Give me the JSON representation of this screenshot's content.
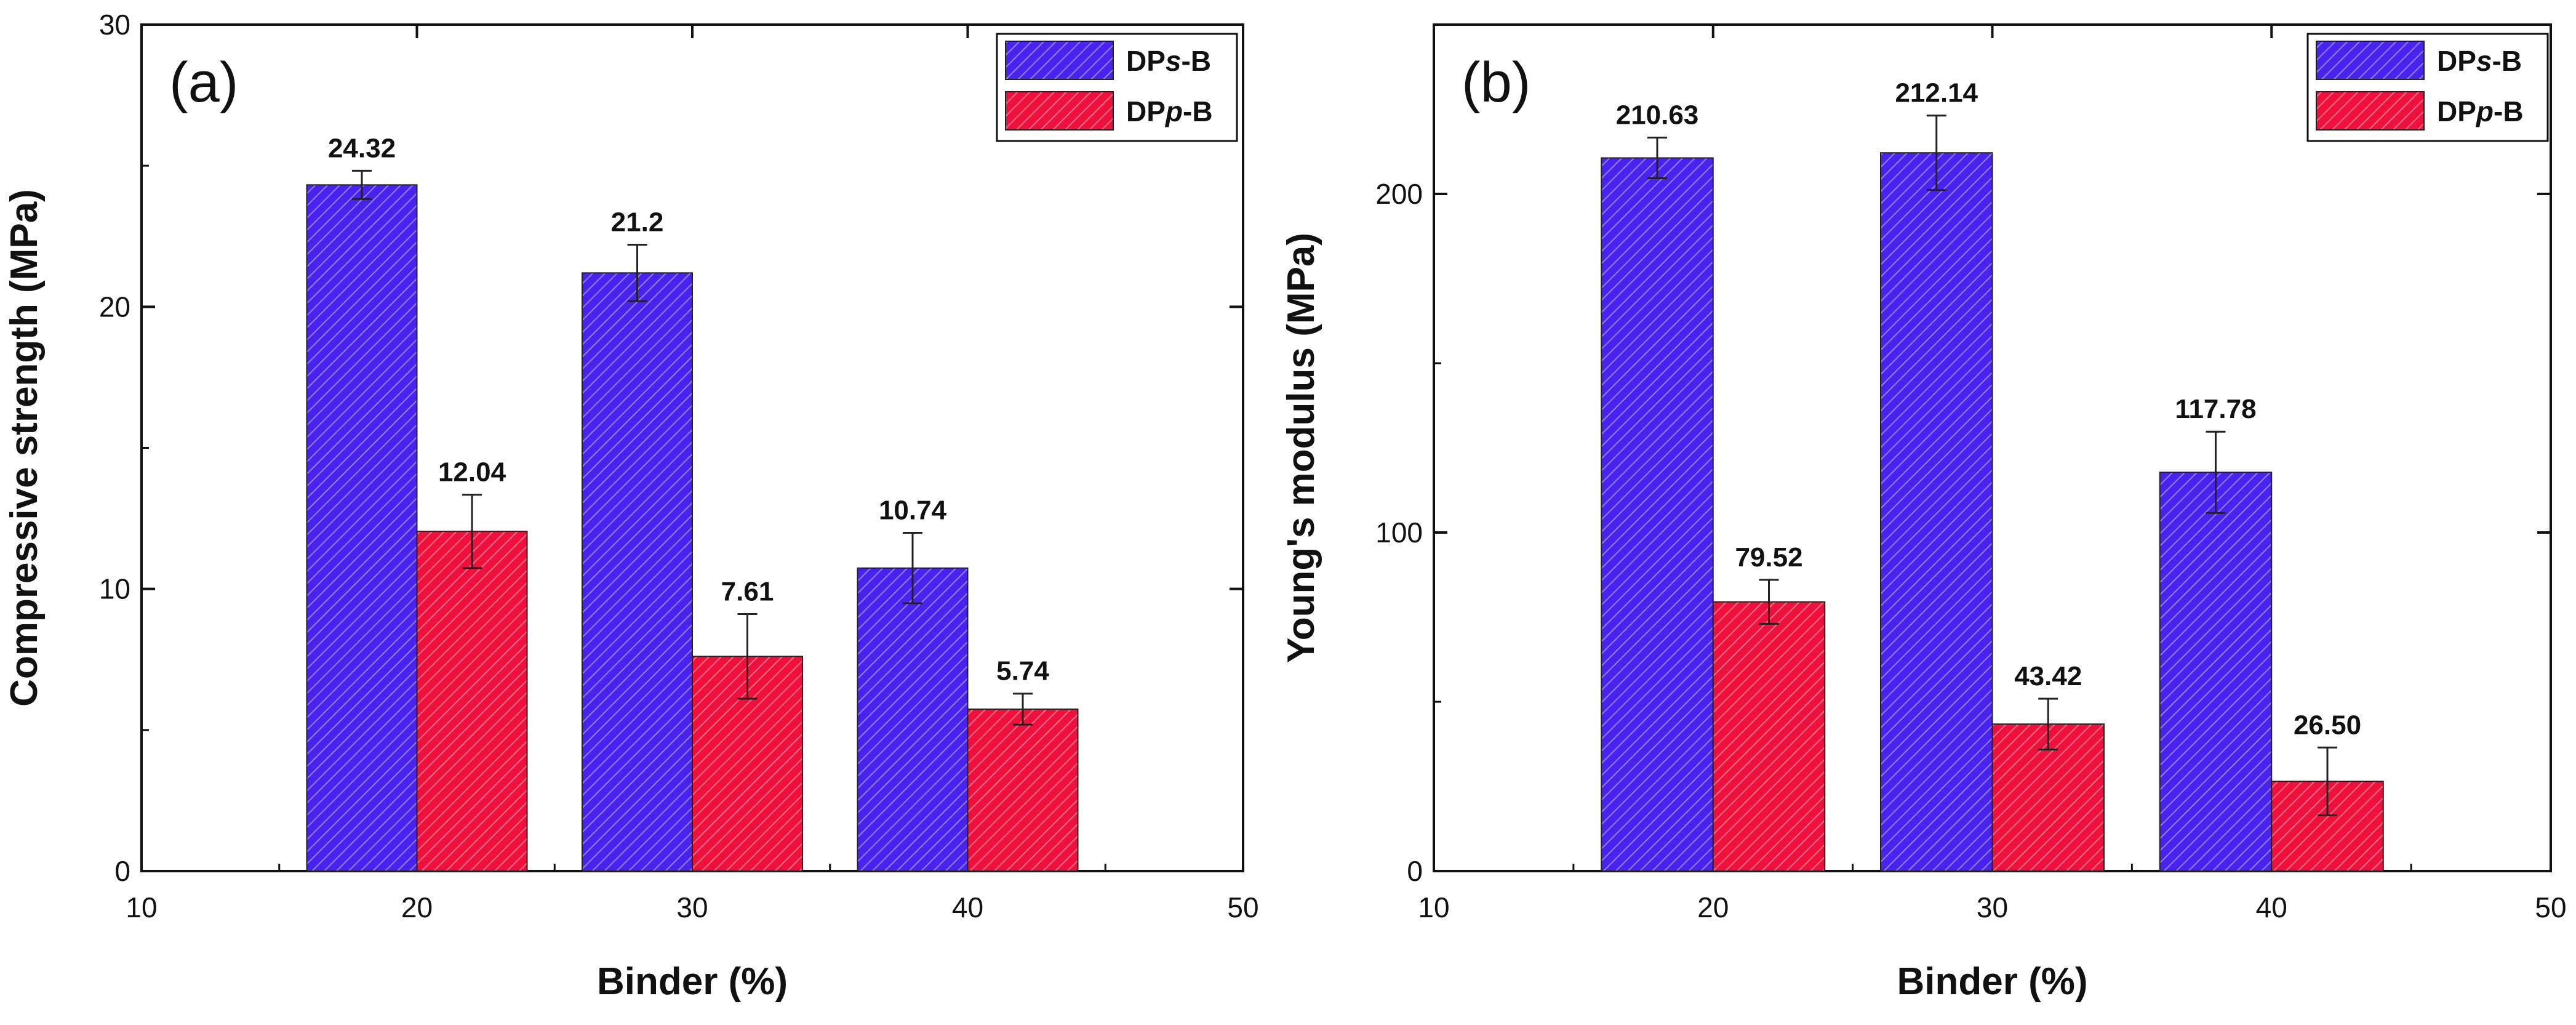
{
  "chart_data": [
    {
      "type": "bar",
      "panel_label": "(a)",
      "categories": [
        "20",
        "30",
        "40"
      ],
      "x": [
        20,
        30,
        40
      ],
      "xlim": [
        10,
        50
      ],
      "xticks": [
        "10",
        "20",
        "30",
        "40",
        "50"
      ],
      "ylim": [
        0,
        30
      ],
      "yticks": [
        "0",
        "10",
        "20",
        "30"
      ],
      "xlabel": "Binder (%)",
      "ylabel": "Compressive strength (MPa)",
      "legend_position": "top-right",
      "series": [
        {
          "name": "DPs-B",
          "name_parts": [
            "DP",
            "s",
            "-B"
          ],
          "color": "#4a22f0",
          "values": [
            24.32,
            21.2,
            10.74
          ],
          "labels": [
            "24.32",
            "21.2",
            "10.74"
          ],
          "errors": [
            0.5,
            1.0,
            1.25
          ]
        },
        {
          "name": "DPp-B",
          "name_parts": [
            "DP",
            "p",
            "-B"
          ],
          "color": "#f0103c",
          "values": [
            12.04,
            7.61,
            5.74
          ],
          "labels": [
            "12.04",
            "7.61",
            "5.74"
          ],
          "errors": [
            1.3,
            1.5,
            0.55
          ]
        }
      ]
    },
    {
      "type": "bar",
      "panel_label": "(b)",
      "categories": [
        "20",
        "30",
        "40"
      ],
      "x": [
        20,
        30,
        40
      ],
      "xlim": [
        10,
        50
      ],
      "xticks": [
        "10",
        "20",
        "30",
        "40",
        "50"
      ],
      "ylim": [
        0,
        250
      ],
      "yticks": [
        "0",
        "100",
        "200"
      ],
      "xlabel": "Binder (%)",
      "ylabel": "Young's modulus (MPa)",
      "legend_position": "top-right",
      "series": [
        {
          "name": "DPs-B",
          "name_parts": [
            "DP",
            "s",
            "-B"
          ],
          "color": "#4a22f0",
          "values": [
            210.63,
            212.14,
            117.78
          ],
          "labels": [
            "210.63",
            "212.14",
            "117.78"
          ],
          "errors": [
            6,
            11,
            12
          ]
        },
        {
          "name": "DPp-B",
          "name_parts": [
            "DP",
            "p",
            "-B"
          ],
          "color": "#f0103c",
          "values": [
            79.52,
            43.42,
            26.5
          ],
          "labels": [
            "79.52",
            "43.42",
            "26.50"
          ],
          "errors": [
            6.5,
            7.5,
            10
          ]
        }
      ]
    }
  ]
}
